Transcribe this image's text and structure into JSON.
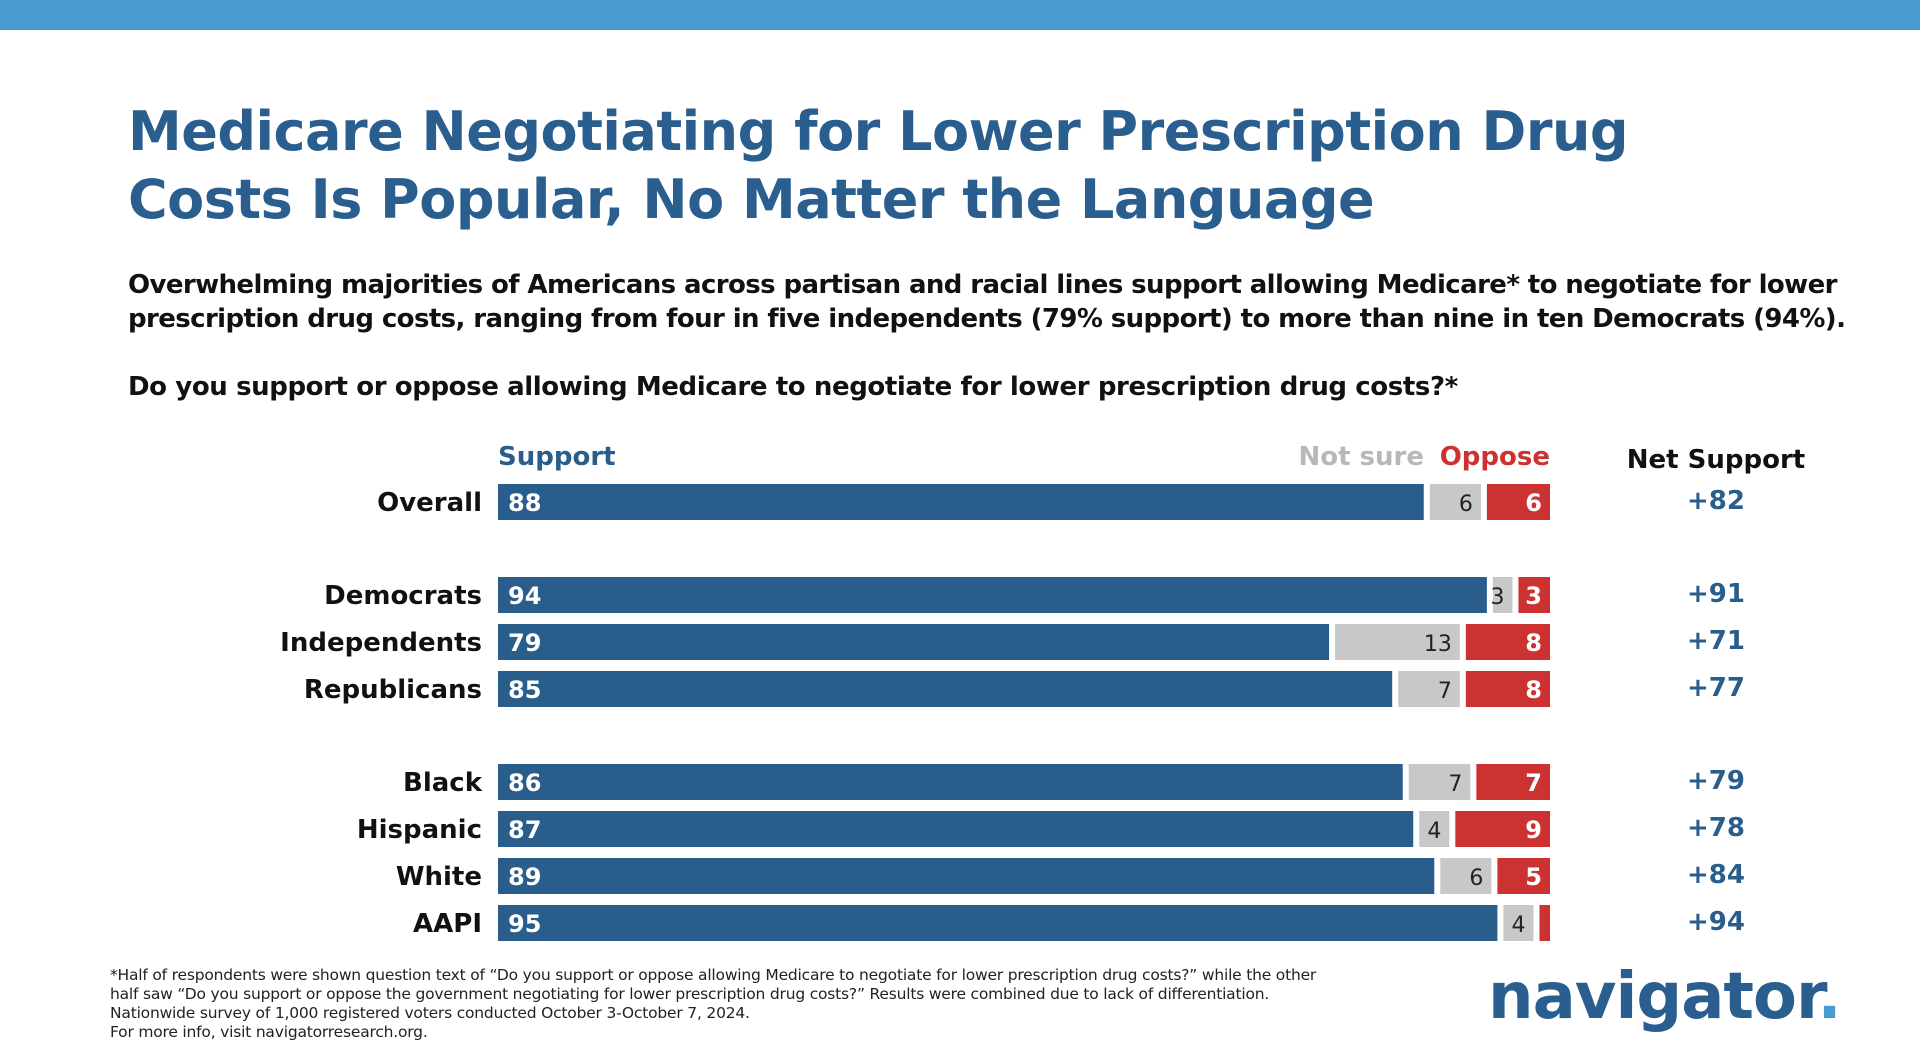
{
  "title": "Medicare Negotiating for Lower Prescription Drug Costs Is Popular, No Matter the Language",
  "subtitle": "Overwhelming majorities of Americans across partisan and racial lines support allowing Medicare* to negotiate for lower prescription drug costs, ranging from four in five independents (79% support) to more than nine in ten Democrats (94%).",
  "question": "Do you support or oppose allowing Medicare to negotiate for lower prescription drug costs?*",
  "colors": {
    "support": "#295d8b",
    "not_sure": "#c8c8c8",
    "oppose": "#cd3232",
    "net": "#295d8b",
    "accent": "#4a9bd1",
    "not_sure_label": "#b8b8b8"
  },
  "chart_data": {
    "type": "bar",
    "orientation": "horizontal",
    "stacked": true,
    "legend": {
      "support": "Support",
      "not_sure": "Not sure",
      "oppose": "Oppose",
      "net": "Net Support"
    },
    "groups": [
      [
        {
          "label": "Overall",
          "support": 88,
          "not_sure": 6,
          "oppose": 6,
          "net": "+82"
        }
      ],
      [
        {
          "label": "Democrats",
          "support": 94,
          "not_sure": 3,
          "oppose": 3,
          "net": "+91"
        },
        {
          "label": "Independents",
          "support": 79,
          "not_sure": 13,
          "oppose": 8,
          "net": "+71"
        },
        {
          "label": "Republicans",
          "support": 85,
          "not_sure": 7,
          "oppose": 8,
          "net": "+77"
        }
      ],
      [
        {
          "label": "Black",
          "support": 86,
          "not_sure": 7,
          "oppose": 7,
          "net": "+79"
        },
        {
          "label": "Hispanic",
          "support": 87,
          "not_sure": 4,
          "oppose": 9,
          "net": "+78"
        },
        {
          "label": "White",
          "support": 89,
          "not_sure": 6,
          "oppose": 5,
          "net": "+84"
        },
        {
          "label": "AAPI",
          "support": 95,
          "not_sure": 4,
          "oppose": 1,
          "oppose_label": "",
          "net": "+94"
        }
      ]
    ]
  },
  "footnote": [
    "*Half of respondents were shown question text of “Do you support or oppose allowing Medicare to negotiate for lower prescription drug costs?” while the other",
    "half saw “Do you support or oppose the government negotiating for lower prescription drug costs?” Results were combined due to lack of differentiation.",
    "Nationwide survey of 1,000 registered voters conducted October 3-October 7, 2024.",
    "For more info, visit navigatorresearch.org."
  ],
  "logo": {
    "text": "navigator",
    "dot": "."
  }
}
